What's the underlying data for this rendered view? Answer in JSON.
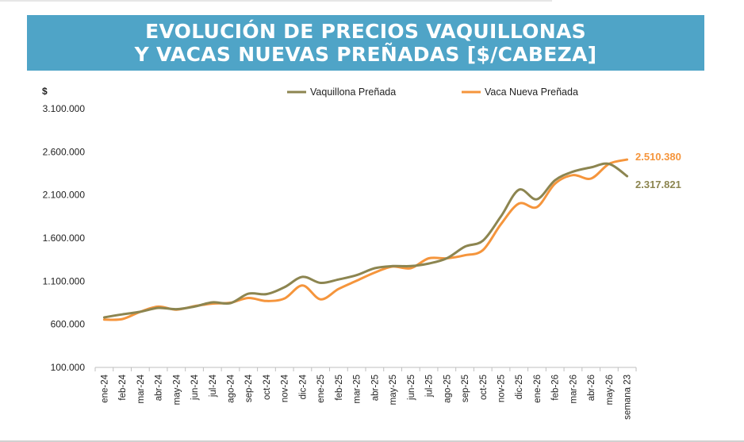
{
  "header": {
    "title_line1": "EVOLUCIÓN DE PRECIOS VAQUILLONAS",
    "title_line2": "Y VACAS NUEVAS PREÑADAS [$/CABEZA]"
  },
  "colors": {
    "banner": "#4fa4c7",
    "vaquillona": "#8c8550",
    "vaca": "#f5953c"
  },
  "chart_data": {
    "type": "line",
    "ylabel": "$",
    "ylim": [
      100000,
      3100000
    ],
    "yticks": [
      100000,
      600000,
      1100000,
      1600000,
      2100000,
      2600000,
      3100000
    ],
    "ytick_labels": [
      "100.000",
      "600.000",
      "1.100.000",
      "1.600.000",
      "2.100.000",
      "2.600.000",
      "3.100.000"
    ],
    "categories": [
      "ene-24",
      "feb-24",
      "mar-24",
      "abr-24",
      "may-24",
      "jun-24",
      "jul-24",
      "ago-24",
      "sep-24",
      "oct-24",
      "nov-24",
      "dic-24",
      "ene-25",
      "feb-25",
      "mar-25",
      "abr-25",
      "may-25",
      "jun-25",
      "jul-25",
      "ago-25",
      "sep-25",
      "oct-25",
      "nov-25",
      "dic-25",
      "ene-26",
      "feb-26",
      "mar-26",
      "abr-26",
      "may-26",
      "semana 23"
    ],
    "legend_position": "top",
    "grid": false,
    "series": [
      {
        "name": "Vaquillona Preñada",
        "color": "#8c8550",
        "end_label": "2.317.821",
        "values": [
          680000,
          715000,
          745000,
          790000,
          775000,
          805000,
          855000,
          845000,
          955000,
          950000,
          1030000,
          1150000,
          1080000,
          1120000,
          1170000,
          1250000,
          1275000,
          1275000,
          1305000,
          1365000,
          1500000,
          1570000,
          1850000,
          2160000,
          2050000,
          2270000,
          2370000,
          2420000,
          2460000,
          2317821
        ]
      },
      {
        "name": "Vaca Nueva Preñada",
        "color": "#f5953c",
        "end_label": "2.510.380",
        "values": [
          655000,
          660000,
          745000,
          805000,
          770000,
          810000,
          840000,
          850000,
          905000,
          870000,
          900000,
          1050000,
          890000,
          1010000,
          1105000,
          1200000,
          1270000,
          1250000,
          1365000,
          1365000,
          1400000,
          1460000,
          1760000,
          2000000,
          1960000,
          2230000,
          2330000,
          2290000,
          2460000,
          2510380
        ]
      }
    ]
  }
}
